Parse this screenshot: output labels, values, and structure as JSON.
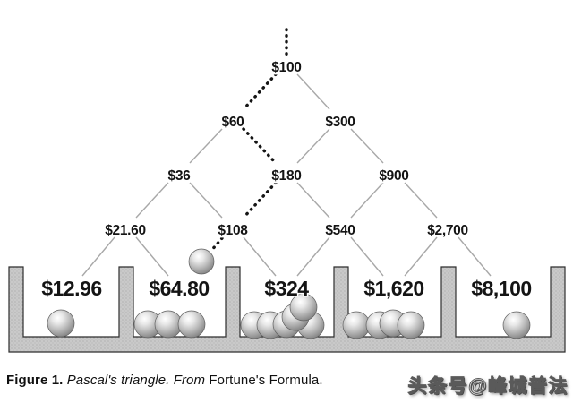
{
  "colors": {
    "edge_gray": "#a8a8a8",
    "dashed_black": "#151515",
    "bin_fill": "#c9c9c9",
    "bin_stipple": "#969696",
    "bin_outline": "#2e2e2e",
    "text": "#141414",
    "background": "#ffffff"
  },
  "tree": {
    "type": "binomial-tree",
    "rows": [
      [
        "$100"
      ],
      [
        "$60",
        "$300"
      ],
      [
        "$36",
        "$180",
        "$900"
      ],
      [
        "$21.60",
        "$108",
        "$540",
        "$2,700"
      ]
    ],
    "dashed_path_values": [
      "$100",
      "$60",
      "$180",
      "$108"
    ],
    "dashed_path_indices": [
      [
        0,
        0
      ],
      [
        1,
        0
      ],
      [
        2,
        1
      ],
      [
        3,
        1
      ]
    ],
    "entry_dashed_stub_above_root": true
  },
  "bins": [
    {
      "label": "$12.96",
      "ball_count": 1,
      "incoming_ball": false
    },
    {
      "label": "$64.80",
      "ball_count": 3,
      "incoming_ball": true
    },
    {
      "label": "$324",
      "ball_count": 6,
      "incoming_ball": false
    },
    {
      "label": "$1,620",
      "ball_count": 4,
      "incoming_ball": false
    },
    {
      "label": "$8,100",
      "ball_count": 1,
      "incoming_ball": false
    }
  ],
  "total_balls": 16,
  "caption": {
    "label": "Figure 1.",
    "body_italic": "Pascal's triangle. From",
    "body_roman": "Fortune's Formula."
  },
  "watermark": "头条号@峰城普法"
}
